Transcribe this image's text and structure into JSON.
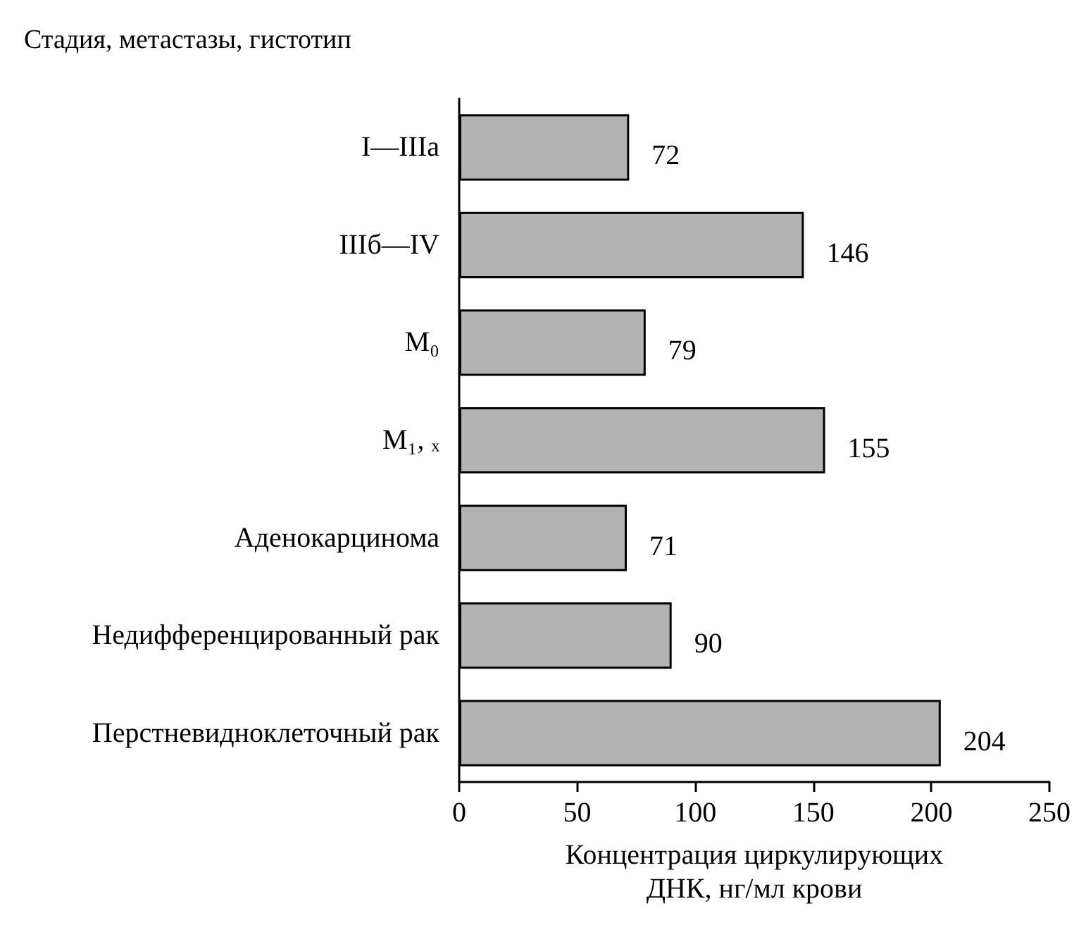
{
  "chart_data": {
    "type": "bar",
    "orientation": "horizontal",
    "ylabel": "Стадия, метастазы, гистотип",
    "xlabel": "Концентрация циркулирующих\nДНК, нг/мл крови",
    "categories": [
      "I—IIIa",
      "IIIб—IV",
      "M₀",
      "M₁, ₓ",
      "Аденокарцинома",
      "Недифференцированный рак",
      "Перстневидноклеточный рак"
    ],
    "values": [
      72,
      146,
      79,
      155,
      71,
      90,
      204
    ],
    "color": "#b3b3b3",
    "xlim": [
      0,
      250
    ],
    "xticks": [
      0,
      50,
      100,
      150,
      200,
      250
    ],
    "data_labels": true,
    "grid": false
  }
}
